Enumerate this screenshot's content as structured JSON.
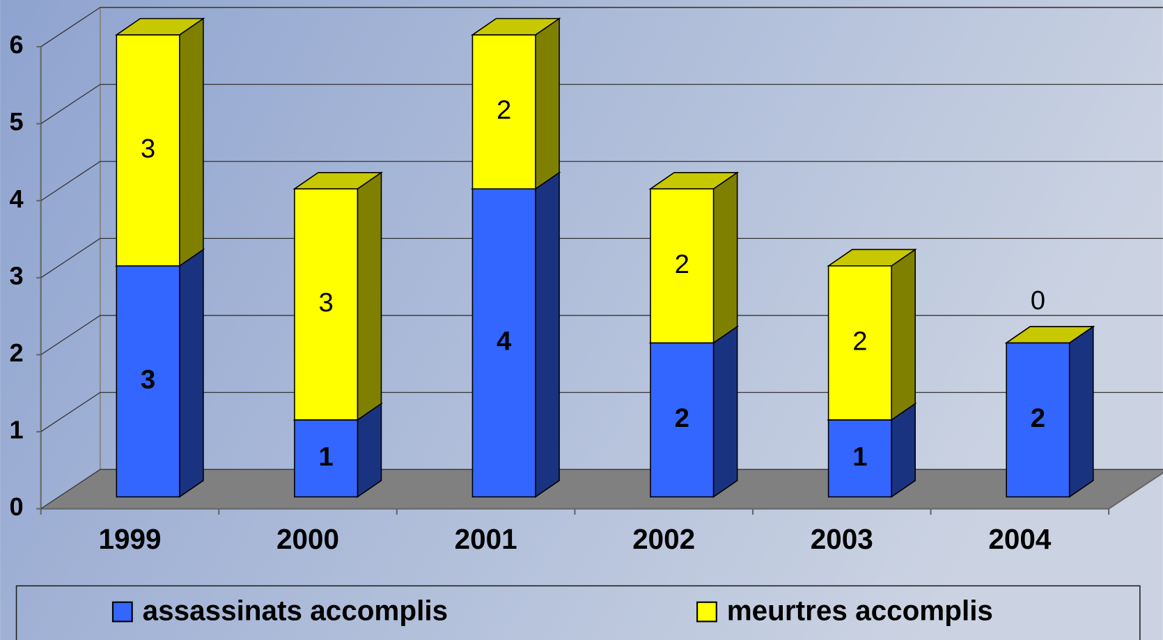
{
  "chart_data": {
    "type": "bar3d_stacked",
    "categories": [
      "1999",
      "2000",
      "2001",
      "2002",
      "2003",
      "2004"
    ],
    "series": [
      {
        "name": "assassinats accomplis",
        "color": "#3366ff",
        "values": [
          3,
          1,
          4,
          2,
          1,
          2
        ]
      },
      {
        "name": "meurtres accomplis",
        "color": "#ffff00",
        "values": [
          3,
          3,
          2,
          2,
          2,
          0
        ]
      }
    ],
    "ylim": [
      0,
      6
    ],
    "yticks": [
      0,
      1,
      2,
      3,
      4,
      5,
      6
    ],
    "grid": true,
    "legend": "bottom"
  }
}
